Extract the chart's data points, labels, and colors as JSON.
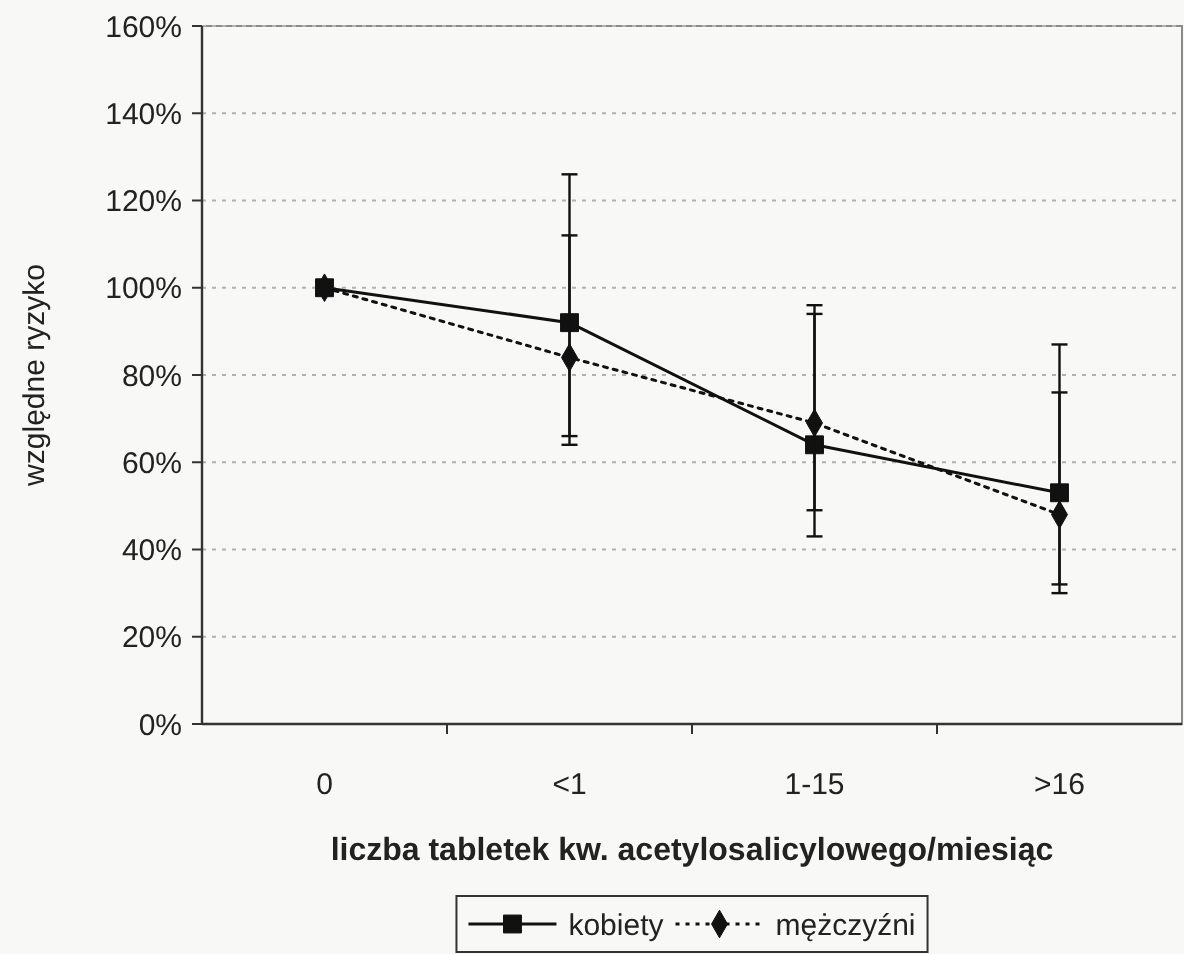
{
  "chart_data": {
    "type": "line",
    "xlabel": "liczba tabletek kw. acetylosalicylowego/miesiąc",
    "ylabel": "względne ryzyko",
    "categories": [
      "0",
      "<1",
      "1-15",
      ">16"
    ],
    "series": [
      {
        "name": "kobiety",
        "color": "#111111",
        "marker": "square",
        "line_style": "solid",
        "values": [
          100,
          92,
          64,
          53
        ],
        "errors": [
          null,
          [
            66,
            126
          ],
          [
            43,
            96
          ],
          [
            32,
            87
          ]
        ]
      },
      {
        "name": "mężczyźni",
        "color": "#111111",
        "marker": "diamond",
        "line_style": "dotted",
        "values": [
          100,
          84,
          69,
          48
        ],
        "errors": [
          null,
          [
            64,
            112
          ],
          [
            49,
            94
          ],
          [
            30,
            76
          ]
        ]
      }
    ],
    "ylim": [
      0,
      160
    ],
    "yticks": [
      {
        "value": 0,
        "label": "0%"
      },
      {
        "value": 20,
        "label": "20%"
      },
      {
        "value": 40,
        "label": "40%"
      },
      {
        "value": 60,
        "label": "60%"
      },
      {
        "value": 80,
        "label": "80%"
      },
      {
        "value": 100,
        "label": "100%"
      },
      {
        "value": 120,
        "label": "120%"
      },
      {
        "value": 140,
        "label": "140%"
      },
      {
        "value": 160,
        "label": "160%"
      }
    ],
    "grid": "y",
    "legend": "bottom"
  }
}
